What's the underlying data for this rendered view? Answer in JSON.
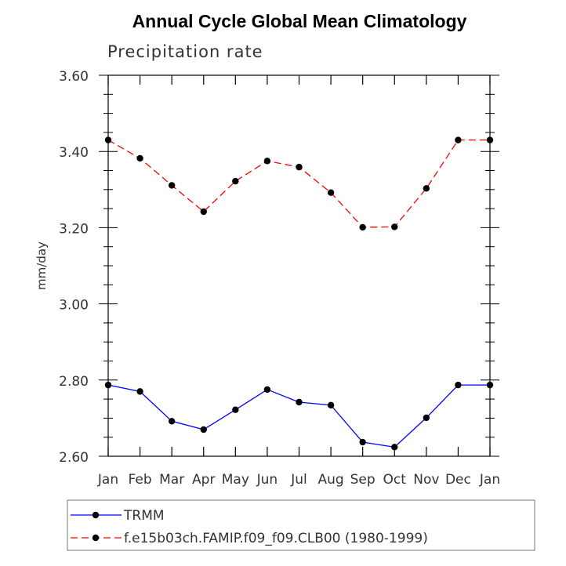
{
  "chart_data": {
    "type": "line",
    "title": "Annual Cycle Global Mean Climatology",
    "subtitle": "Precipitation rate",
    "ylabel": "mm/day",
    "xlabel": "",
    "categories": [
      "Jan",
      "Feb",
      "Mar",
      "Apr",
      "May",
      "Jun",
      "Jul",
      "Aug",
      "Sep",
      "Oct",
      "Nov",
      "Dec",
      "Jan"
    ],
    "ylim": [
      2.6,
      3.6
    ],
    "yticks": [
      "2.60",
      "2.80",
      "3.00",
      "3.20",
      "3.40",
      "3.60"
    ],
    "grid": false,
    "legend_position": "bottom",
    "series": [
      {
        "name": "TRMM",
        "color": "#0000ff",
        "dash": "solid",
        "values": [
          2.787,
          2.77,
          2.692,
          2.67,
          2.722,
          2.775,
          2.742,
          2.734,
          2.637,
          2.624,
          2.701,
          2.787,
          2.787
        ]
      },
      {
        "name": "f.e15b03ch.FAMIP.f09_f09.CLB00 (1980-1999)",
        "color": "#ff0000",
        "dash": "dashed",
        "values": [
          3.43,
          3.382,
          3.311,
          3.242,
          3.322,
          3.375,
          3.359,
          3.292,
          3.201,
          3.202,
          3.303,
          3.43,
          3.43
        ]
      }
    ]
  }
}
